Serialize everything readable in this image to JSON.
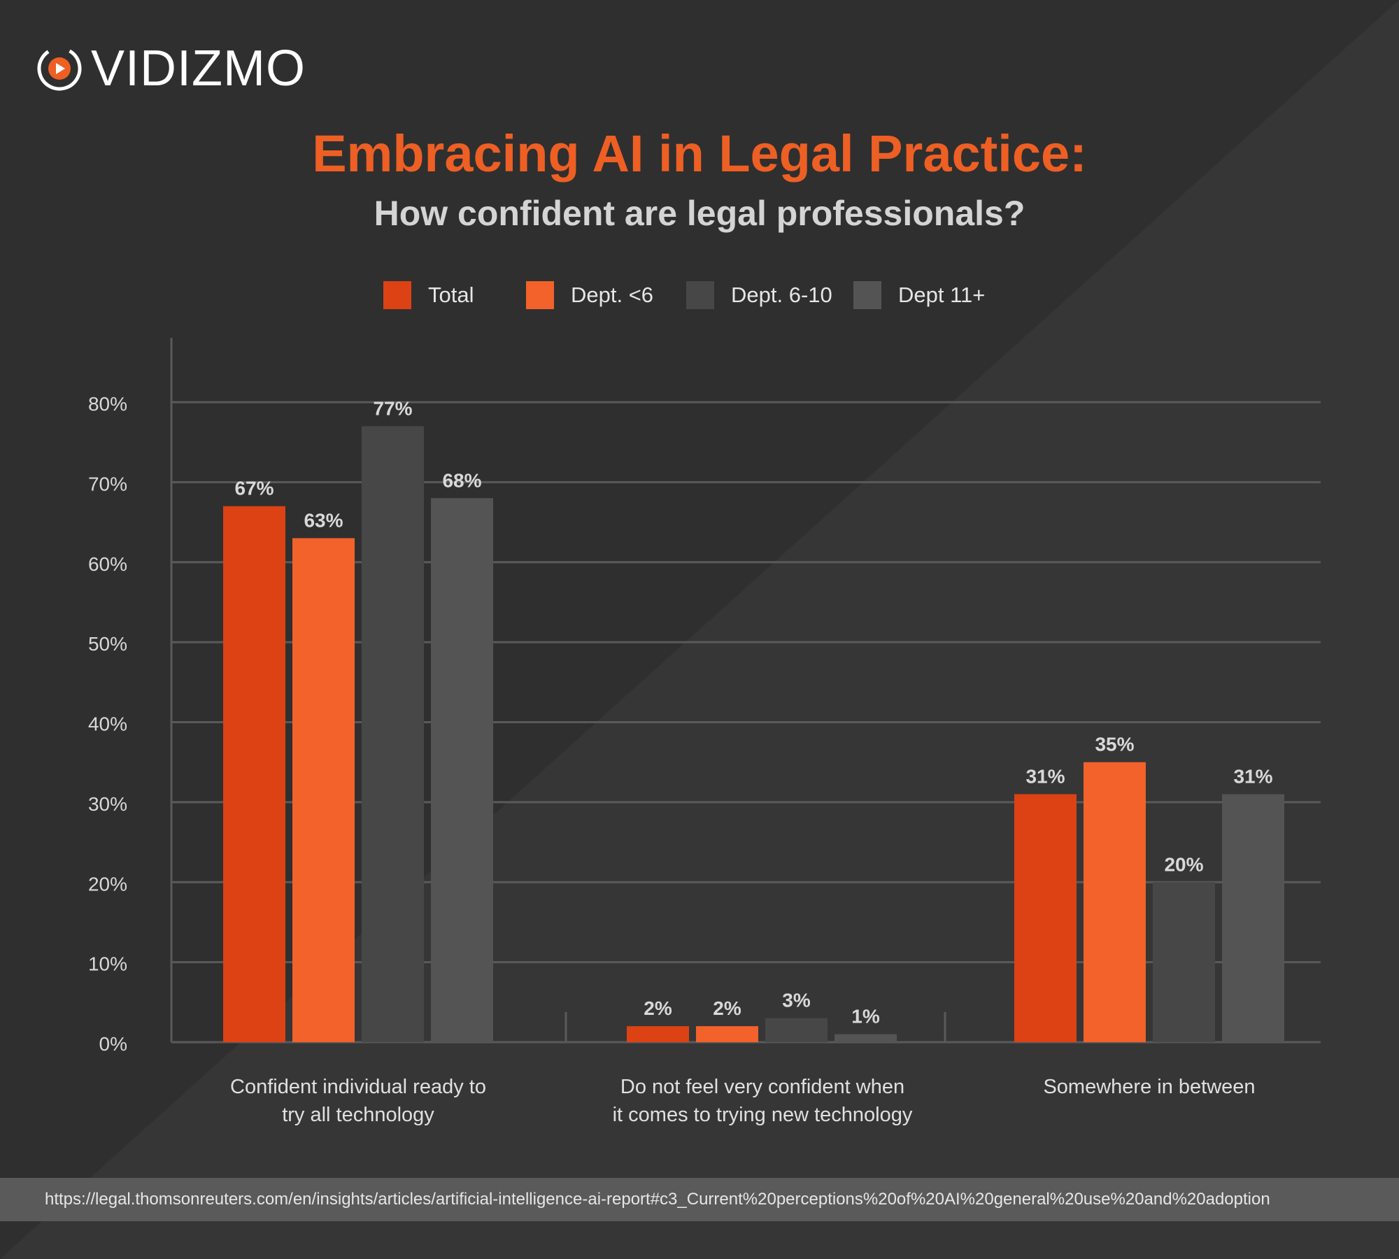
{
  "brand": {
    "name": "VIDIZMO",
    "accent": "#ee5f24"
  },
  "title": "Embracing AI in Legal Practice:",
  "subtitle": "How confident are legal professionals?",
  "chart_data": {
    "type": "bar",
    "categories": [
      [
        "Confident individual ready to",
        "try all technology"
      ],
      [
        "Do not feel very confident when",
        "it comes to trying new technology"
      ],
      [
        "Somewhere in between"
      ]
    ],
    "series": [
      {
        "name": "Total",
        "color": "#dc4214",
        "values": [
          67,
          2,
          31
        ]
      },
      {
        "name": "Dept. <6",
        "color": "#f2622a",
        "values": [
          63,
          2,
          35
        ]
      },
      {
        "name": "Dept. 6-10",
        "color": "#474747",
        "values": [
          77,
          3,
          20
        ]
      },
      {
        "name": "Dept 11+",
        "color": "#545454",
        "values": [
          68,
          1,
          31
        ]
      }
    ],
    "value_labels": [
      [
        "67%",
        "2%",
        "31%"
      ],
      [
        "63%",
        "2%",
        "35%"
      ],
      [
        "77%",
        "3%",
        "20%"
      ],
      [
        "68%",
        "1%",
        "31%"
      ]
    ],
    "y_ticks": [
      0,
      10,
      20,
      30,
      40,
      50,
      60,
      70,
      80
    ],
    "y_tick_labels": [
      "0%",
      "10%",
      "20%",
      "30%",
      "40%",
      "50%",
      "60%",
      "70%",
      "80%"
    ],
    "ylim": [
      0,
      80
    ],
    "grid": true,
    "legend": "top-center",
    "xlabel": "",
    "ylabel": ""
  },
  "footer": {
    "source": "https://legal.thomsonreuters.com/en/insights/articles/artificial-intelligence-ai-report#c3_Current%20perceptions%20of%20AI%20general%20use%20and%20adoption"
  }
}
